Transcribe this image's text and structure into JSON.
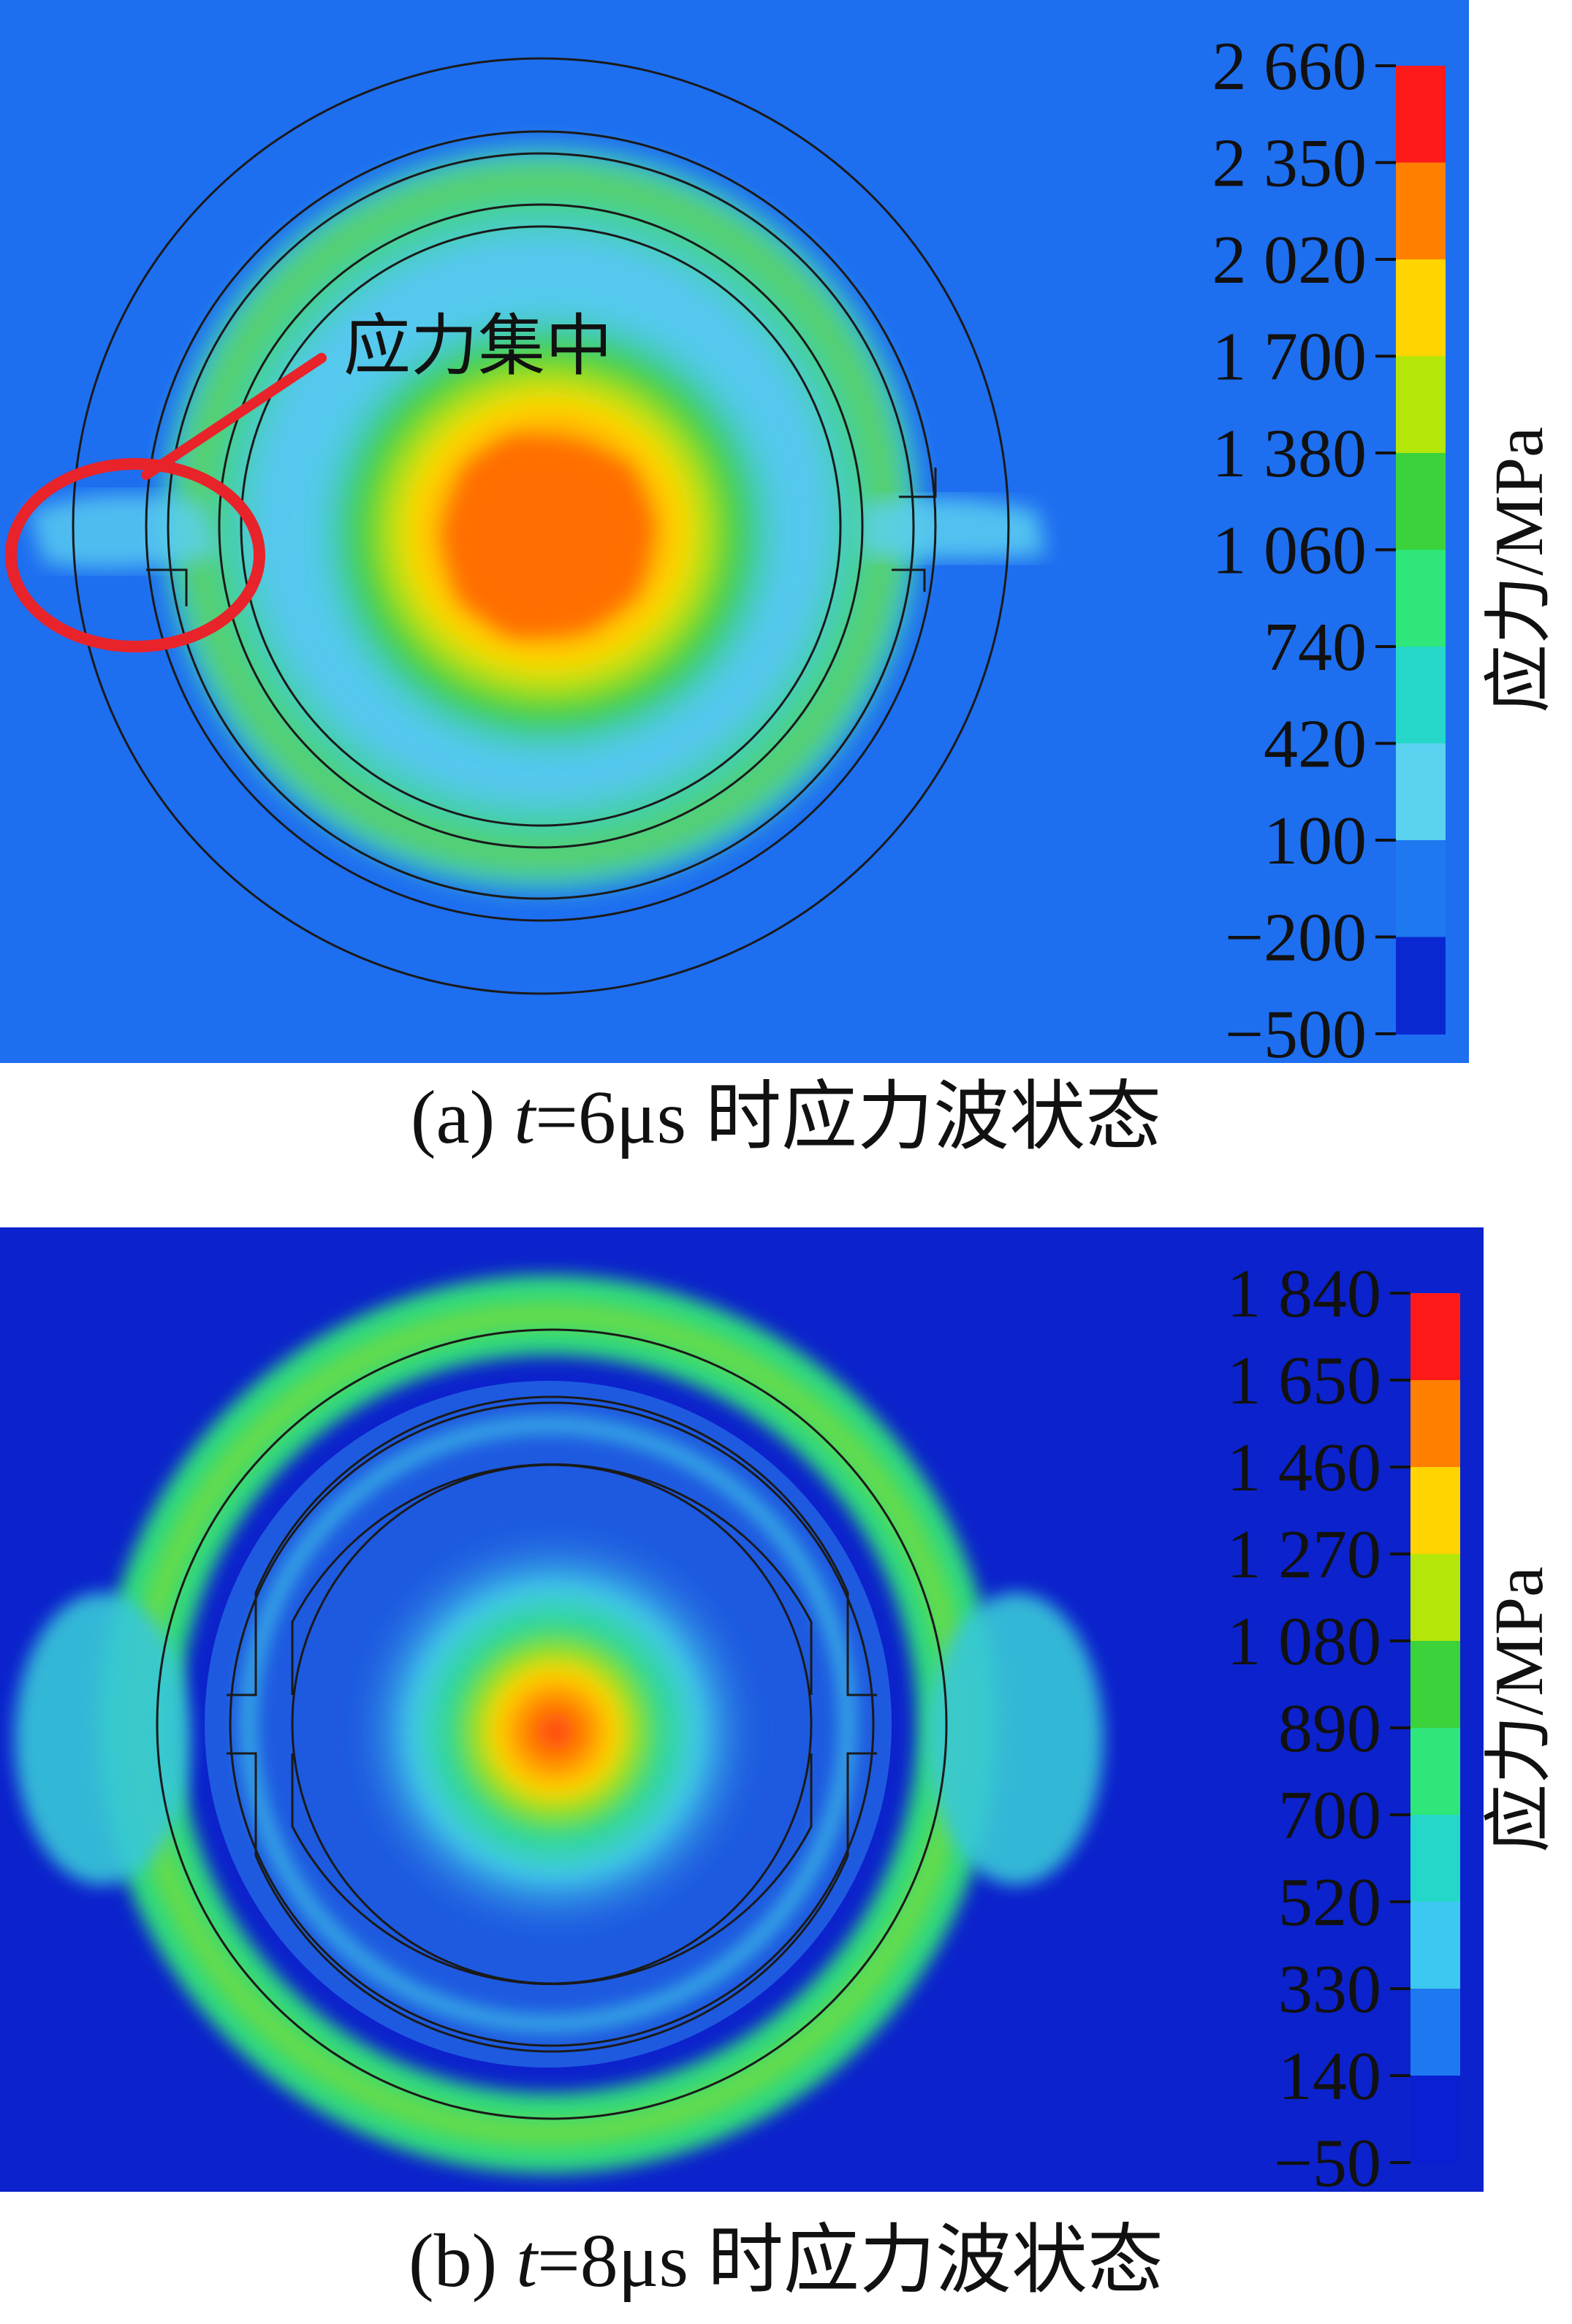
{
  "panel_a": {
    "caption": {
      "prefix": "(a) ",
      "t": "t",
      "rest": "=6μs 时应力波状态"
    },
    "annotation": "应力集中",
    "colorbar": {
      "unit_label": "应力/MPa",
      "ticks": [
        "2 660",
        "2 350",
        "2 020",
        "1 700",
        "1 380",
        "1 060",
        "740",
        "420",
        "100",
        "−200",
        "−500"
      ],
      "colors": [
        "#ff1a1a",
        "#ff7f00",
        "#ffd400",
        "#b4e60a",
        "#3cd23c",
        "#2ee67a",
        "#24d7c8",
        "#5ad2f0",
        "#1e78f0",
        "#0a28d2"
      ]
    }
  },
  "panel_b": {
    "caption": {
      "prefix": "(b) ",
      "t": "t",
      "rest": "=8μs 时应力波状态"
    },
    "colorbar": {
      "unit_label": "应力/MPa",
      "ticks": [
        "1 840",
        "1 650",
        "1 460",
        "1 270",
        "1 080",
        "890",
        "700",
        "520",
        "330",
        "140",
        "−50"
      ],
      "colors": [
        "#ff1a1a",
        "#ff7f00",
        "#ffd400",
        "#b4e60a",
        "#3cd23c",
        "#2ee67a",
        "#24d7c8",
        "#3cc8f0",
        "#1e78f0",
        "#0a1ed2"
      ]
    }
  }
}
